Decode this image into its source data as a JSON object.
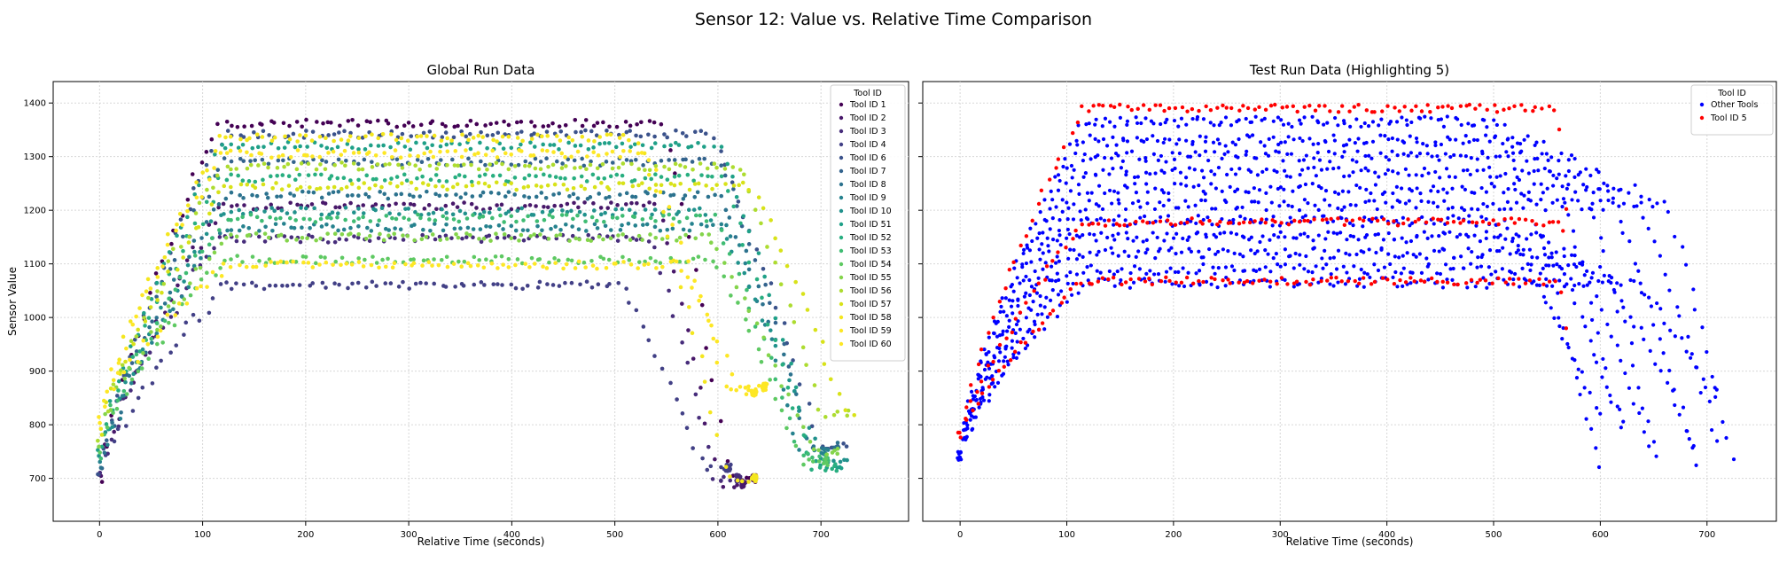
{
  "figure": {
    "suptitle": "Sensor 12: Value vs. Relative Time Comparison"
  },
  "chart_data": [
    {
      "type": "scatter",
      "title": "Global Run Data",
      "xlabel": "Relative Time (seconds)",
      "ylabel": "Sensor Value",
      "xlim": [
        -45,
        785
      ],
      "ylim": [
        620,
        1440
      ],
      "xticks": [
        0,
        100,
        200,
        300,
        400,
        500,
        600,
        700
      ],
      "yticks": [
        700,
        800,
        900,
        1000,
        1100,
        1200,
        1300,
        1400
      ],
      "grid": true,
      "legend": {
        "title": "Tool ID",
        "placement": "top-right"
      },
      "series": [
        {
          "name": "Tool ID 1",
          "color": "#440154",
          "start": 690,
          "rise_end": 115,
          "plateau": 1362,
          "drop_start": 545,
          "drop_end": 610,
          "end": 700
        },
        {
          "name": "Tool ID 2",
          "color": "#48186a",
          "start": 700,
          "rise_end": 118,
          "plateau": 1208,
          "drop_start": 540,
          "drop_end": 600,
          "end": 690
        },
        {
          "name": "Tool ID 3",
          "color": "#472d7b",
          "start": 705,
          "rise_end": 115,
          "plateau": 1147,
          "drop_start": 535,
          "drop_end": 595,
          "end": 700
        },
        {
          "name": "Tool ID 4",
          "color": "#424086",
          "start": 700,
          "rise_end": 120,
          "plateau": 1060,
          "drop_start": 505,
          "drop_end": 585,
          "end": 720
        },
        {
          "name": "Tool ID 6",
          "color": "#3b528b",
          "start": 700,
          "rise_end": 118,
          "plateau": 1342,
          "drop_start": 590,
          "drop_end": 700,
          "end": 760
        },
        {
          "name": "Tool ID 7",
          "color": "#33638d",
          "start": 710,
          "rise_end": 118,
          "plateau": 1290,
          "drop_start": 600,
          "drop_end": 690,
          "end": 760
        },
        {
          "name": "Tool ID 8",
          "color": "#2c728e",
          "start": 710,
          "rise_end": 120,
          "plateau": 1228,
          "drop_start": 600,
          "drop_end": 690,
          "end": 760
        },
        {
          "name": "Tool ID 9",
          "color": "#26828e",
          "start": 720,
          "rise_end": 120,
          "plateau": 1168,
          "drop_start": 610,
          "drop_end": 680,
          "end": 750
        },
        {
          "name": "Tool ID 10",
          "color": "#21918c",
          "start": 730,
          "rise_end": 120,
          "plateau": 1198,
          "drop_start": 590,
          "drop_end": 700,
          "end": 735
        },
        {
          "name": "Tool ID 51",
          "color": "#1fa088",
          "start": 740,
          "rise_end": 118,
          "plateau": 1320,
          "drop_start": 600,
          "drop_end": 695,
          "end": 725
        },
        {
          "name": "Tool ID 52",
          "color": "#28ae80",
          "start": 745,
          "rise_end": 120,
          "plateau": 1260,
          "drop_start": 600,
          "drop_end": 690,
          "end": 720
        },
        {
          "name": "Tool ID 53",
          "color": "#3fbc73",
          "start": 750,
          "rise_end": 120,
          "plateau": 1185,
          "drop_start": 595,
          "drop_end": 680,
          "end": 740
        },
        {
          "name": "Tool ID 54",
          "color": "#5ec962",
          "start": 760,
          "rise_end": 120,
          "plateau": 1108,
          "drop_start": 595,
          "drop_end": 680,
          "end": 730
        },
        {
          "name": "Tool ID 55",
          "color": "#84d44b",
          "start": 770,
          "rise_end": 120,
          "plateau": 1150,
          "drop_start": 590,
          "drop_end": 690,
          "end": 750
        },
        {
          "name": "Tool ID 56",
          "color": "#addc30",
          "start": 780,
          "rise_end": 122,
          "plateau": 1282,
          "drop_start": 620,
          "drop_end": 700,
          "end": 820
        },
        {
          "name": "Tool ID 57",
          "color": "#d8e219",
          "start": 790,
          "rise_end": 122,
          "plateau": 1245,
          "drop_start": 630,
          "drop_end": 725,
          "end": 815
        },
        {
          "name": "Tool ID 58",
          "color": "#f4e61e",
          "start": 800,
          "rise_end": 118,
          "plateau": 1335,
          "drop_start": 520,
          "drop_end": 610,
          "end": 700
        },
        {
          "name": "Tool ID 59",
          "color": "#fde725",
          "start": 810,
          "rise_end": 120,
          "plateau": 1305,
          "drop_start": 530,
          "drop_end": 610,
          "end": 860
        },
        {
          "name": "Tool ID 60",
          "color": "#fde725",
          "start": 820,
          "rise_end": 122,
          "plateau": 1098,
          "drop_start": 560,
          "drop_end": 620,
          "end": 870
        }
      ]
    },
    {
      "type": "scatter",
      "title": "Test Run Data (Highlighting 5)",
      "xlabel": "Relative Time (seconds)",
      "ylabel": "",
      "xlim": [
        -35,
        765
      ],
      "ylim": [
        620,
        1440
      ],
      "xticks": [
        0,
        100,
        200,
        300,
        400,
        500,
        600,
        700
      ],
      "yticks": [
        700,
        800,
        900,
        1000,
        1100,
        1200,
        1300,
        1400
      ],
      "grid": true,
      "legend": {
        "title": "Tool ID",
        "placement": "top-right"
      },
      "series": [
        {
          "name": "Other Tools",
          "color": "#0000ff",
          "plateau_range": [
            1060,
            1365
          ],
          "drop_starts": [
            505,
            545,
            575,
            600,
            630,
            660
          ],
          "drop_ends": [
            600,
            620,
            650,
            690,
            710,
            725
          ],
          "end_range": [
            700,
            880
          ]
        },
        {
          "name": "Tool ID 5",
          "color": "#ff0000",
          "start": 780,
          "rise_end": 115,
          "plateaus": [
            1390,
            1178,
            1068
          ],
          "drop_start": 560,
          "drop_ends": [
            580,
            680
          ],
          "end_range": [
            690,
            760
          ]
        }
      ]
    }
  ]
}
